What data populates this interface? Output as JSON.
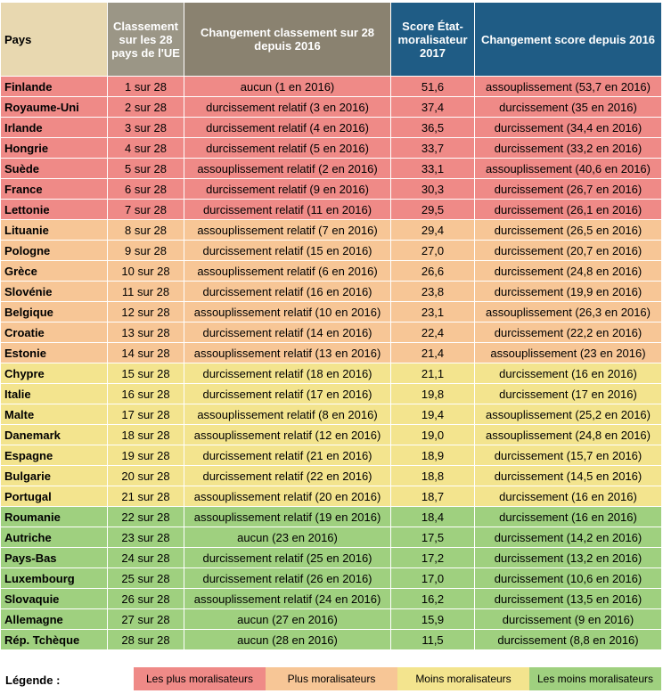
{
  "headers": {
    "pays": "Pays",
    "rank": "Classement sur les 28 pays de l'UE",
    "rank_change": "Changement classement sur 28 depuis 2016",
    "score": "Score État-moralisateur 2017",
    "score_change": "Changement score depuis 2016"
  },
  "rows": [
    {
      "pays": "Finlande",
      "rank": "1 sur 28",
      "rank_change": "aucun (1 en 2016)",
      "score": "51,6",
      "score_change": "assouplissement (53,7 en 2016)",
      "group": "red"
    },
    {
      "pays": "Royaume-Uni",
      "rank": "2 sur 28",
      "rank_change": "durcissement relatif (3 en 2016)",
      "score": "37,4",
      "score_change": "durcissement (35 en 2016)",
      "group": "red"
    },
    {
      "pays": "Irlande",
      "rank": "3 sur 28",
      "rank_change": "durcissement relatif (4 en 2016)",
      "score": "36,5",
      "score_change": "durcissement (34,4 en 2016)",
      "group": "red"
    },
    {
      "pays": "Hongrie",
      "rank": "4 sur 28",
      "rank_change": "durcissement relatif (5 en 2016)",
      "score": "33,7",
      "score_change": "durcissement (33,2 en 2016)",
      "group": "red"
    },
    {
      "pays": "Suède",
      "rank": "5 sur 28",
      "rank_change": "assouplissement relatif (2 en 2016)",
      "score": "33,1",
      "score_change": "assouplissement (40,6 en 2016)",
      "group": "red"
    },
    {
      "pays": "France",
      "rank": "6 sur 28",
      "rank_change": "durcissement relatif (9 en 2016)",
      "score": "30,3",
      "score_change": "durcissement (26,7 en 2016)",
      "group": "red"
    },
    {
      "pays": "Lettonie",
      "rank": "7 sur 28",
      "rank_change": "durcissement relatif (11 en 2016)",
      "score": "29,5",
      "score_change": "durcissement (26,1 en 2016)",
      "group": "red"
    },
    {
      "pays": "Lituanie",
      "rank": "8 sur 28",
      "rank_change": "assouplissement relatif (7 en 2016)",
      "score": "29,4",
      "score_change": "durcissement (26,5 en 2016)",
      "group": "orange"
    },
    {
      "pays": "Pologne",
      "rank": "9 sur 28",
      "rank_change": "durcissement relatif (15 en 2016)",
      "score": "27,0",
      "score_change": "durcissement (20,7 en 2016)",
      "group": "orange"
    },
    {
      "pays": "Grèce",
      "rank": "10 sur 28",
      "rank_change": "assouplissement relatif (6 en 2016)",
      "score": "26,6",
      "score_change": "durcissement (24,8 en 2016)",
      "group": "orange"
    },
    {
      "pays": "Slovénie",
      "rank": "11 sur 28",
      "rank_change": "durcissement relatif (16 en 2016)",
      "score": "23,8",
      "score_change": "durcissement (19,9 en 2016)",
      "group": "orange"
    },
    {
      "pays": "Belgique",
      "rank": "12 sur 28",
      "rank_change": "assouplissement relatif (10 en 2016)",
      "score": "23,1",
      "score_change": "assouplissement (26,3 en 2016)",
      "group": "orange"
    },
    {
      "pays": "Croatie",
      "rank": "13 sur 28",
      "rank_change": "durcissement relatif (14 en 2016)",
      "score": "22,4",
      "score_change": "durcissement (22,2 en 2016)",
      "group": "orange"
    },
    {
      "pays": "Estonie",
      "rank": "14 sur 28",
      "rank_change": "assouplissement relatif (13 en 2016)",
      "score": "21,4",
      "score_change": "assouplissement (23 en 2016)",
      "group": "orange"
    },
    {
      "pays": "Chypre",
      "rank": "15 sur 28",
      "rank_change": "durcissement relatif (18 en 2016)",
      "score": "21,1",
      "score_change": "durcissement (16 en 2016)",
      "group": "yellow"
    },
    {
      "pays": "Italie",
      "rank": "16 sur 28",
      "rank_change": "durcissement relatif (17 en 2016)",
      "score": "19,8",
      "score_change": "durcissement (17 en 2016)",
      "group": "yellow"
    },
    {
      "pays": "Malte",
      "rank": "17 sur 28",
      "rank_change": "assouplissement relatif (8 en 2016)",
      "score": "19,4",
      "score_change": "assouplissement (25,2 en 2016)",
      "group": "yellow"
    },
    {
      "pays": "Danemark",
      "rank": "18 sur 28",
      "rank_change": "assouplissement relatif (12 en 2016)",
      "score": "19,0",
      "score_change": "assouplissement (24,8 en 2016)",
      "group": "yellow"
    },
    {
      "pays": "Espagne",
      "rank": "19 sur 28",
      "rank_change": "durcissement relatif (21 en 2016)",
      "score": "18,9",
      "score_change": "durcissement (15,7 en 2016)",
      "group": "yellow"
    },
    {
      "pays": "Bulgarie",
      "rank": "20 sur 28",
      "rank_change": "durcissement relatif (22 en 2016)",
      "score": "18,8",
      "score_change": "durcissement (14,5 en 2016)",
      "group": "yellow"
    },
    {
      "pays": "Portugal",
      "rank": "21 sur 28",
      "rank_change": "assouplissement relatif (20 en 2016)",
      "score": "18,7",
      "score_change": "durcissement (16 en 2016)",
      "group": "yellow"
    },
    {
      "pays": "Roumanie",
      "rank": "22 sur 28",
      "rank_change": "assouplissement relatif (19 en 2016)",
      "score": "18,4",
      "score_change": "durcissement (16 en 2016)",
      "group": "green"
    },
    {
      "pays": "Autriche",
      "rank": "23 sur 28",
      "rank_change": "aucun (23 en 2016)",
      "score": "17,5",
      "score_change": "durcissement (14,2 en 2016)",
      "group": "green"
    },
    {
      "pays": "Pays-Bas",
      "rank": "24 sur 28",
      "rank_change": "durcissement relatif (25 en 2016)",
      "score": "17,2",
      "score_change": "durcissement (13,2 en 2016)",
      "group": "green"
    },
    {
      "pays": "Luxembourg",
      "rank": "25 sur 28",
      "rank_change": "durcissement relatif (26 en 2016)",
      "score": "17,0",
      "score_change": "durcissement (10,6 en 2016)",
      "group": "green"
    },
    {
      "pays": "Slovaquie",
      "rank": "26 sur 28",
      "rank_change": "assouplissement relatif (24 en 2016)",
      "score": "16,2",
      "score_change": "durcissement (13,5 en 2016)",
      "group": "green"
    },
    {
      "pays": "Allemagne",
      "rank": "27 sur 28",
      "rank_change": "aucun (27 en 2016)",
      "score": "15,9",
      "score_change": "durcissement (9 en 2016)",
      "group": "green"
    },
    {
      "pays": "Rép. Tchèque",
      "rank": "28 sur 28",
      "rank_change": "aucun (28 en 2016)",
      "score": "11,5",
      "score_change": "durcissement (8,8 en 2016)",
      "group": "green"
    }
  ],
  "legend": {
    "label": "Légende :",
    "items": [
      {
        "label": "Les plus moralisateurs",
        "color": "#ef8a87"
      },
      {
        "label": "Plus moralisateurs",
        "color": "#f7c696"
      },
      {
        "label": "Moins moralisateurs",
        "color": "#f3e48e"
      },
      {
        "label": "Les moins moralisateurs",
        "color": "#9fd07f"
      }
    ]
  },
  "colors": {
    "red": "#ef8a87",
    "orange": "#f7c696",
    "yellow": "#f3e48e",
    "green": "#9fd07f",
    "header_blue": "#1f5c85",
    "header_taupe": "#8a8270",
    "header_beige": "#e8d8b0"
  }
}
